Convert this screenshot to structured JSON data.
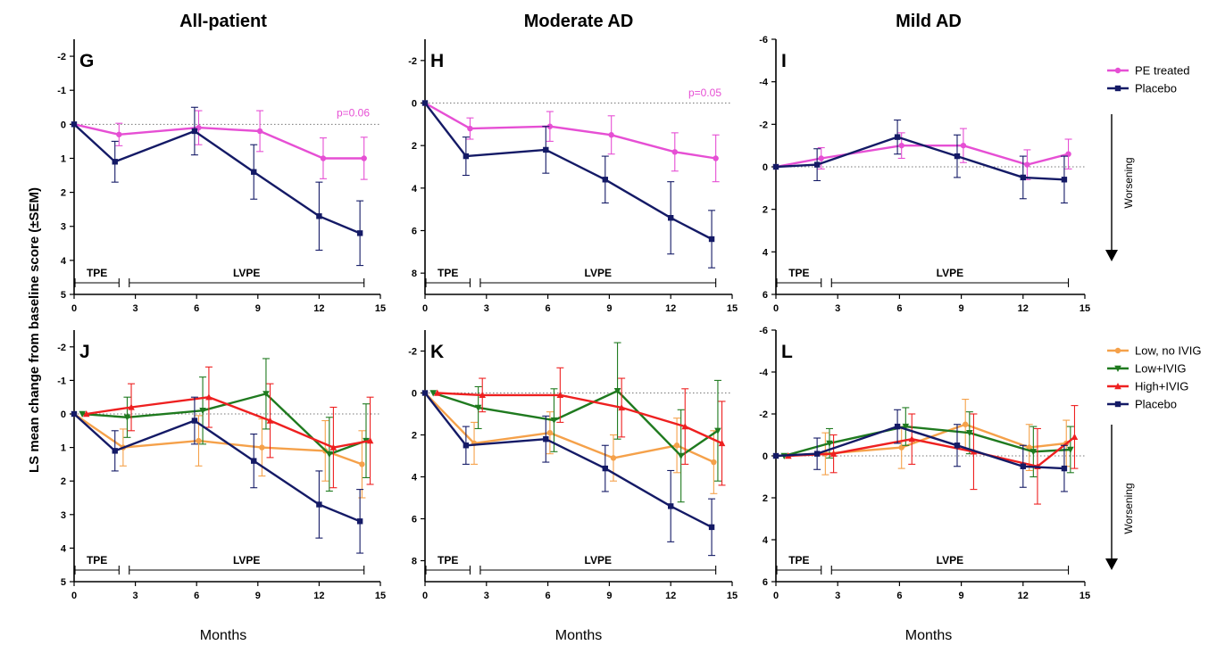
{
  "column_titles": [
    "All-patient",
    "Moderate AD",
    "Mild AD"
  ],
  "ylabel": "LS mean change from baseline score (±SEM)",
  "xlabel": "Months",
  "worsening_label": "Worsening",
  "phase_labels": {
    "tpe": "TPE",
    "lvpe": "LVPE"
  },
  "legend_top": [
    {
      "name": "PE treated",
      "color": "#e64fd4"
    },
    {
      "name": "Placebo",
      "color": "#141a66"
    }
  ],
  "legend_bottom": [
    {
      "name": "Low, no IVIG",
      "color": "#f5a14a"
    },
    {
      "name": "Low+IVIG",
      "color": "#1f7a1f"
    },
    {
      "name": "High+IVIG",
      "color": "#ee2020"
    },
    {
      "name": "Placebo",
      "color": "#141a66"
    }
  ],
  "chart_data": [
    {
      "panel": "G",
      "type": "line",
      "ylim": [
        5,
        -2.5
      ],
      "yticks": [
        5,
        4,
        3,
        2,
        1,
        0,
        -1,
        -2
      ],
      "xlim": [
        0,
        15
      ],
      "xticks": [
        0,
        3,
        6,
        9,
        12,
        15
      ],
      "annotation": "p=0.06",
      "annotation_color": "#e64fd4",
      "series": [
        {
          "name": "PE treated",
          "color": "#e64fd4",
          "marker": "circle",
          "x": [
            0,
            2.2,
            6.1,
            9.1,
            12.2,
            14.2
          ],
          "y": [
            0,
            0.3,
            0.1,
            0.2,
            1.0,
            1.0
          ],
          "err": [
            0,
            0.33,
            0.5,
            0.6,
            0.6,
            0.62
          ]
        },
        {
          "name": "Placebo",
          "color": "#141a66",
          "marker": "square",
          "x": [
            0,
            2.0,
            5.9,
            8.8,
            12.0,
            14.0
          ],
          "y": [
            0,
            1.1,
            0.2,
            1.4,
            2.7,
            3.2
          ],
          "err": [
            0,
            0.6,
            0.7,
            0.8,
            1.0,
            0.95
          ]
        }
      ]
    },
    {
      "panel": "H",
      "type": "line",
      "ylim": [
        9,
        -3
      ],
      "yticks": [
        8,
        6,
        4,
        2,
        0,
        -2
      ],
      "xlim": [
        0,
        15
      ],
      "xticks": [
        0,
        3,
        6,
        9,
        12,
        15
      ],
      "annotation": "p=0.05",
      "annotation_color": "#e64fd4",
      "series": [
        {
          "name": "PE treated",
          "color": "#e64fd4",
          "marker": "circle",
          "x": [
            0,
            2.2,
            6.1,
            9.1,
            12.2,
            14.2
          ],
          "y": [
            0,
            1.2,
            1.1,
            1.5,
            2.3,
            2.6
          ],
          "err": [
            0,
            0.5,
            0.7,
            0.9,
            0.9,
            1.1
          ]
        },
        {
          "name": "Placebo",
          "color": "#141a66",
          "marker": "square",
          "x": [
            0,
            2.0,
            5.9,
            8.8,
            12.0,
            14.0
          ],
          "y": [
            0,
            2.5,
            2.2,
            3.6,
            5.4,
            6.4
          ],
          "err": [
            0,
            0.9,
            1.1,
            1.1,
            1.7,
            1.35
          ]
        }
      ]
    },
    {
      "panel": "I",
      "type": "line",
      "ylim": [
        6,
        -6
      ],
      "yticks": [
        6,
        4,
        2,
        0,
        -2,
        -4,
        -6
      ],
      "xlim": [
        0,
        15
      ],
      "xticks": [
        0,
        3,
        6,
        9,
        12,
        15
      ],
      "annotation": "",
      "series": [
        {
          "name": "PE treated",
          "color": "#e64fd4",
          "marker": "circle",
          "x": [
            0,
            2.2,
            6.1,
            9.1,
            12.2,
            14.2
          ],
          "y": [
            0,
            -0.4,
            -1.0,
            -1.0,
            -0.1,
            -0.6
          ],
          "err": [
            0,
            0.5,
            0.6,
            0.8,
            0.7,
            0.7
          ]
        },
        {
          "name": "Placebo",
          "color": "#141a66",
          "marker": "square",
          "x": [
            0,
            2.0,
            5.9,
            8.8,
            12.0,
            14.0
          ],
          "y": [
            0,
            -0.1,
            -1.4,
            -0.5,
            0.5,
            0.6
          ],
          "err": [
            0,
            0.75,
            0.8,
            1.0,
            1.0,
            1.1
          ]
        }
      ]
    },
    {
      "panel": "J",
      "type": "line",
      "ylim": [
        5,
        -2.5
      ],
      "yticks": [
        5,
        4,
        3,
        2,
        1,
        0,
        -1,
        -2
      ],
      "xlim": [
        0,
        15
      ],
      "xticks": [
        0,
        3,
        6,
        9,
        12,
        15
      ],
      "annotation": "",
      "series": [
        {
          "name": "Low, no IVIG",
          "color": "#f5a14a",
          "marker": "circle",
          "x": [
            0,
            2.4,
            6.1,
            9.2,
            12.3,
            14.1
          ],
          "y": [
            0,
            1.0,
            0.8,
            1.0,
            1.1,
            1.5
          ],
          "err": [
            0,
            0.55,
            0.75,
            0.85,
            0.9,
            1.0
          ]
        },
        {
          "name": "Low+IVIG",
          "color": "#1f7a1f",
          "marker": "triangle-down",
          "x": [
            0.4,
            2.6,
            6.3,
            9.4,
            12.5,
            14.3
          ],
          "y": [
            0,
            0.1,
            -0.1,
            -0.6,
            1.2,
            0.8
          ],
          "err": [
            0,
            0.6,
            1.0,
            1.05,
            1.1,
            1.1
          ]
        },
        {
          "name": "High+IVIG",
          "color": "#ee2020",
          "marker": "triangle-up",
          "x": [
            0.6,
            2.8,
            6.6,
            9.6,
            12.7,
            14.5
          ],
          "y": [
            0,
            -0.2,
            -0.5,
            0.2,
            1.0,
            0.8
          ],
          "err": [
            0,
            0.7,
            0.9,
            1.1,
            1.2,
            1.3
          ]
        },
        {
          "name": "Placebo",
          "color": "#141a66",
          "marker": "square",
          "x": [
            0,
            2.0,
            5.9,
            8.8,
            12.0,
            14.0
          ],
          "y": [
            0,
            1.1,
            0.2,
            1.4,
            2.7,
            3.2
          ],
          "err": [
            0,
            0.6,
            0.7,
            0.8,
            1.0,
            0.95
          ]
        }
      ]
    },
    {
      "panel": "K",
      "type": "line",
      "ylim": [
        9,
        -3
      ],
      "yticks": [
        8,
        6,
        4,
        2,
        0,
        -2
      ],
      "xlim": [
        0,
        15
      ],
      "xticks": [
        0,
        3,
        6,
        9,
        12,
        15
      ],
      "annotation": "",
      "series": [
        {
          "name": "Low, no IVIG",
          "color": "#f5a14a",
          "marker": "circle",
          "x": [
            0,
            2.4,
            6.1,
            9.2,
            12.3,
            14.1
          ],
          "y": [
            0,
            2.4,
            1.9,
            3.1,
            2.5,
            3.3
          ],
          "err": [
            0,
            1.0,
            1.0,
            1.1,
            1.3,
            1.5
          ]
        },
        {
          "name": "Low+IVIG",
          "color": "#1f7a1f",
          "marker": "triangle-down",
          "x": [
            0.4,
            2.6,
            6.3,
            9.4,
            12.5,
            14.3
          ],
          "y": [
            0,
            0.7,
            1.3,
            -0.1,
            3.0,
            1.8
          ],
          "err": [
            0,
            1.0,
            1.5,
            2.3,
            2.2,
            2.4
          ]
        },
        {
          "name": "High+IVIG",
          "color": "#ee2020",
          "marker": "triangle-up",
          "x": [
            0.6,
            2.8,
            6.6,
            9.6,
            12.7,
            14.5
          ],
          "y": [
            0,
            0.1,
            0.1,
            0.7,
            1.6,
            2.4
          ],
          "err": [
            0,
            0.8,
            1.3,
            1.4,
            1.8,
            2.0
          ]
        },
        {
          "name": "Placebo",
          "color": "#141a66",
          "marker": "square",
          "x": [
            0,
            2.0,
            5.9,
            8.8,
            12.0,
            14.0
          ],
          "y": [
            0,
            2.5,
            2.2,
            3.6,
            5.4,
            6.4
          ],
          "err": [
            0,
            0.9,
            1.1,
            1.1,
            1.7,
            1.35
          ]
        }
      ]
    },
    {
      "panel": "L",
      "type": "line",
      "ylim": [
        6,
        -6
      ],
      "yticks": [
        6,
        4,
        2,
        0,
        -2,
        -4,
        -6
      ],
      "xlim": [
        0,
        15
      ],
      "xticks": [
        0,
        3,
        6,
        9,
        12,
        15
      ],
      "annotation": "",
      "series": [
        {
          "name": "Low, no IVIG",
          "color": "#f5a14a",
          "marker": "circle",
          "x": [
            0,
            2.4,
            6.1,
            9.2,
            12.3,
            14.1
          ],
          "y": [
            0,
            -0.1,
            -0.4,
            -1.5,
            -0.4,
            -0.6
          ],
          "err": [
            0,
            1.0,
            1.0,
            1.2,
            1.1,
            1.1
          ]
        },
        {
          "name": "Low+IVIG",
          "color": "#1f7a1f",
          "marker": "triangle-down",
          "x": [
            0.4,
            2.6,
            6.3,
            9.4,
            12.5,
            14.3
          ],
          "y": [
            0,
            -0.6,
            -1.4,
            -1.1,
            -0.2,
            -0.3
          ],
          "err": [
            0,
            0.7,
            0.9,
            1.0,
            1.2,
            1.1
          ]
        },
        {
          "name": "High+IVIG",
          "color": "#ee2020",
          "marker": "triangle-up",
          "x": [
            0.6,
            2.8,
            6.6,
            9.6,
            12.7,
            14.5
          ],
          "y": [
            0,
            -0.1,
            -0.8,
            -0.2,
            0.5,
            -0.9
          ],
          "err": [
            0,
            0.9,
            1.2,
            1.8,
            1.8,
            1.5
          ]
        },
        {
          "name": "Placebo",
          "color": "#141a66",
          "marker": "square",
          "x": [
            0,
            2.0,
            5.9,
            8.8,
            12.0,
            14.0
          ],
          "y": [
            0,
            -0.1,
            -1.4,
            -0.5,
            0.5,
            0.6
          ],
          "err": [
            0,
            0.75,
            0.8,
            1.0,
            1.0,
            1.1
          ]
        }
      ]
    }
  ]
}
